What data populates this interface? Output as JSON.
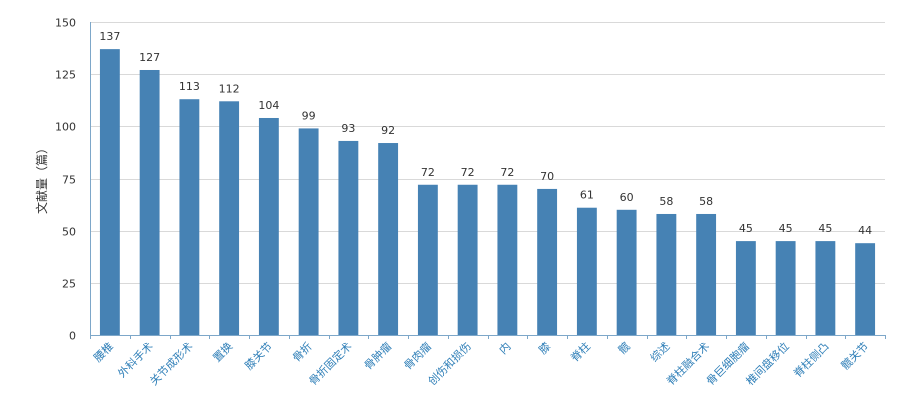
{
  "chart_data": {
    "type": "bar",
    "title": "",
    "xlabel": "",
    "ylabel": "文献量（篇）",
    "ylim": [
      0,
      150
    ],
    "yticks": [
      0,
      25,
      50,
      75,
      100,
      125,
      150
    ],
    "grid": true,
    "bar_color": "#4682b4",
    "categories": [
      "腰椎",
      "外科手术",
      "关节成形术",
      "置换",
      "膝关节",
      "骨折",
      "骨折固定术",
      "骨肿瘤",
      "骨肉瘤",
      "创伤和损伤",
      "内",
      "膝",
      "脊柱",
      "髋",
      "综述",
      "脊柱融合术",
      "骨巨细胞瘤",
      "椎间盘移位",
      "脊柱侧凸",
      "髋关节"
    ],
    "values": [
      137,
      127,
      113,
      112,
      104,
      99,
      93,
      92,
      72,
      72,
      72,
      70,
      61,
      60,
      58,
      58,
      45,
      45,
      45,
      44
    ]
  }
}
